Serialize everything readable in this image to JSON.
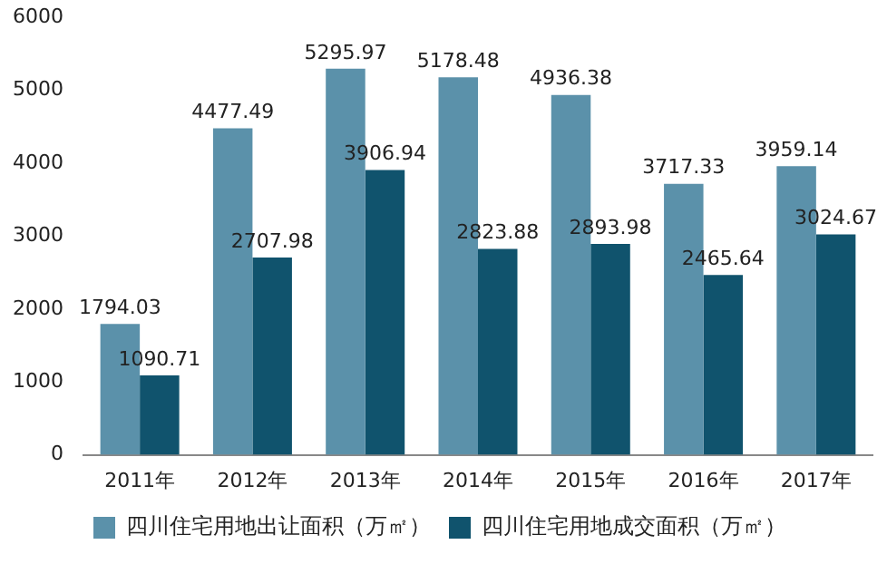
{
  "chart_data": {
    "type": "bar",
    "categories": [
      "2011年",
      "2012年",
      "2013年",
      "2014年",
      "2015年",
      "2016年",
      "2017年"
    ],
    "series": [
      {
        "name": "四川住宅用地出让面积（万㎡）",
        "color": "#5b91aa",
        "values": [
          1794.03,
          4477.49,
          5295.97,
          5178.48,
          4936.38,
          3717.33,
          3959.14
        ]
      },
      {
        "name": "四川住宅用地成交面积（万㎡）",
        "color": "#10536d",
        "values": [
          1090.71,
          2707.98,
          3906.94,
          2823.88,
          2893.98,
          2465.64,
          3024.67
        ]
      }
    ],
    "ylim": [
      0,
      6000
    ],
    "yticks": [
      0,
      1000,
      2000,
      3000,
      4000,
      5000,
      6000
    ],
    "grid": false,
    "legend": "bottom",
    "data_labels": true
  }
}
